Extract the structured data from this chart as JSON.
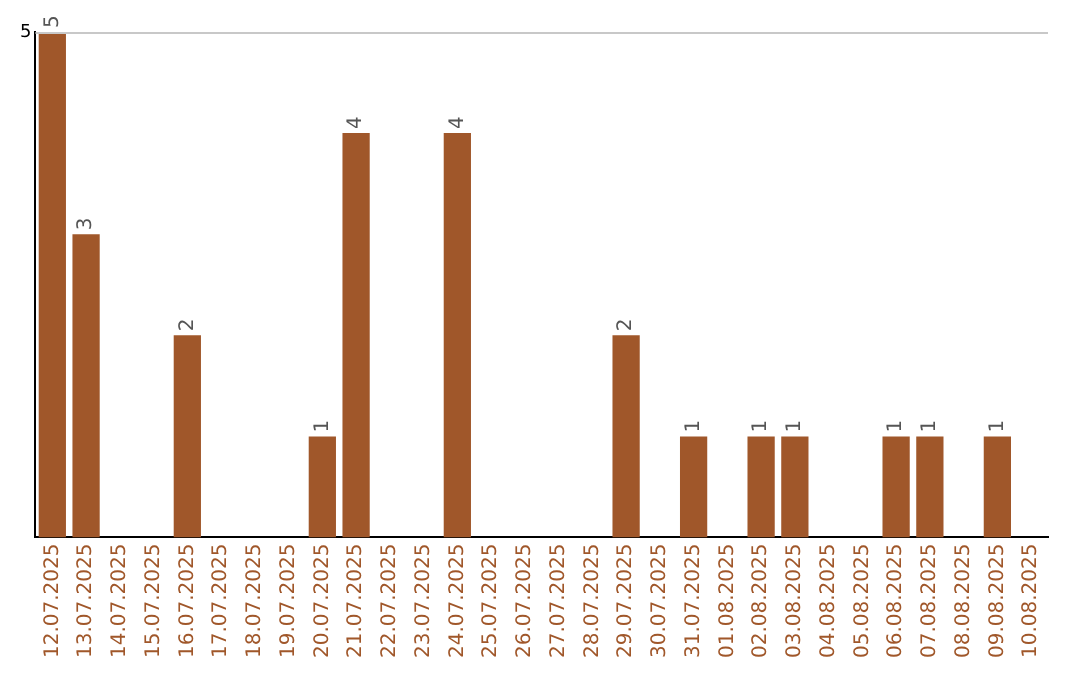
{
  "chart_data": {
    "type": "bar",
    "categories": [
      "12.07.2025",
      "13.07.2025",
      "14.07.2025",
      "15.07.2025",
      "16.07.2025",
      "17.07.2025",
      "18.07.2025",
      "19.07.2025",
      "20.07.2025",
      "21.07.2025",
      "22.07.2025",
      "23.07.2025",
      "24.07.2025",
      "25.07.2025",
      "26.07.2025",
      "27.07.2025",
      "28.07.2025",
      "29.07.2025",
      "30.07.2025",
      "31.07.2025",
      "01.08.2025",
      "02.08.2025",
      "03.08.2025",
      "04.08.2025",
      "05.08.2025",
      "06.08.2025",
      "07.08.2025",
      "08.08.2025",
      "09.08.2025",
      "10.08.2025"
    ],
    "values": [
      5,
      3,
      null,
      null,
      2,
      null,
      null,
      null,
      1,
      4,
      null,
      null,
      4,
      null,
      null,
      null,
      null,
      2,
      null,
      1,
      null,
      1,
      1,
      null,
      null,
      1,
      1,
      null,
      1,
      null
    ],
    "color": "#a0572a",
    "ylim": [
      0,
      5
    ],
    "yticks": [
      5
    ],
    "data_labels": true
  }
}
